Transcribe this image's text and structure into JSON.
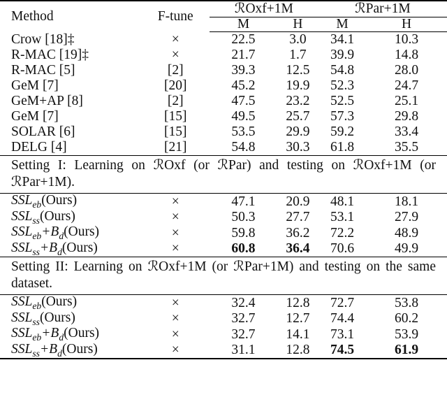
{
  "header": {
    "method": "Method",
    "ftune": "F-tune",
    "group1": "ℛOxf+1M",
    "group2": "ℛPar+1M",
    "m": "M",
    "h": "H"
  },
  "baseline_rows": [
    {
      "method": "Crow [18]‡",
      "ftune": "×",
      "oxf_m": "22.5",
      "oxf_h": "3.0",
      "par_m": "34.1",
      "par_h": "10.3"
    },
    {
      "method": "R-MAC [19]‡",
      "ftune": "×",
      "oxf_m": "21.7",
      "oxf_h": "1.7",
      "par_m": "39.9",
      "par_h": "14.8"
    },
    {
      "method": "R-MAC [5]",
      "ftune": "[2]",
      "oxf_m": "39.3",
      "oxf_h": "12.5",
      "par_m": "54.8",
      "par_h": "28.0"
    },
    {
      "method": "GeM [7]",
      "ftune": "[20]",
      "oxf_m": "45.2",
      "oxf_h": "19.9",
      "par_m": "52.3",
      "par_h": "24.7"
    },
    {
      "method": "GeM+AP [8]",
      "ftune": "[2]",
      "oxf_m": "47.5",
      "oxf_h": "23.2",
      "par_m": "52.5",
      "par_h": "25.1"
    },
    {
      "method": "GeM [7]",
      "ftune": "[15]",
      "oxf_m": "49.5",
      "oxf_h": "25.7",
      "par_m": "57.3",
      "par_h": "29.8"
    },
    {
      "method": "SOLAR [6]",
      "ftune": "[15]",
      "oxf_m": "53.5",
      "oxf_h": "29.9",
      "par_m": "59.2",
      "par_h": "33.4"
    },
    {
      "method": "DELG [4]",
      "ftune": "[21]",
      "oxf_m": "54.8",
      "oxf_h": "30.3",
      "par_m": "61.8",
      "par_h": "35.5"
    }
  ],
  "setting1": {
    "text": "Setting I: Learning on ℛOxf (or ℛPar) and testing on ℛOxf+1M (or ℛPar+1M).",
    "rows": [
      {
        "method_base": "SSL",
        "method_sub": "eb",
        "method_extra": "",
        "method_extra_sub": "",
        "method_suffix": "(Ours)",
        "ftune": "×",
        "oxf_m": "47.1",
        "oxf_h": "20.9",
        "par_m": "48.1",
        "par_h": "18.1"
      },
      {
        "method_base": "SSL",
        "method_sub": "ss",
        "method_extra": "",
        "method_extra_sub": "",
        "method_suffix": "(Ours)",
        "ftune": "×",
        "oxf_m": "50.3",
        "oxf_h": "27.7",
        "par_m": "53.1",
        "par_h": "27.9"
      },
      {
        "method_base": "SSL",
        "method_sub": "eb",
        "method_extra": "+B",
        "method_extra_sub": "d",
        "method_suffix": "(Ours)",
        "ftune": "×",
        "oxf_m": "59.8",
        "oxf_h": "36.2",
        "par_m": "72.2",
        "par_h": "48.9"
      },
      {
        "method_base": "SSL",
        "method_sub": "ss",
        "method_extra": "+B",
        "method_extra_sub": "d",
        "method_suffix": "(Ours)",
        "ftune": "×",
        "oxf_m": "60.8",
        "oxf_h": "36.4",
        "par_m": "70.6",
        "par_h": "49.9"
      }
    ]
  },
  "setting2": {
    "text": "Setting II: Learning on ℛOxf+1M (or ℛPar+1M) and testing on the same dataset.",
    "rows": [
      {
        "method_base": "SSL",
        "method_sub": "eb",
        "method_extra": "",
        "method_extra_sub": "",
        "method_suffix": "(Ours)",
        "ftune": "×",
        "oxf_m": "32.4",
        "oxf_h": "12.8",
        "par_m": "72.7",
        "par_h": "53.8"
      },
      {
        "method_base": "SSL",
        "method_sub": "ss",
        "method_extra": "",
        "method_extra_sub": "",
        "method_suffix": "(Ours)",
        "ftune": "×",
        "oxf_m": "32.7",
        "oxf_h": "12.7",
        "par_m": "74.4",
        "par_h": "60.2"
      },
      {
        "method_base": "SSL",
        "method_sub": "eb",
        "method_extra": "+B",
        "method_extra_sub": "d",
        "method_suffix": "(Ours)",
        "ftune": "×",
        "oxf_m": "32.7",
        "oxf_h": "14.1",
        "par_m": "73.1",
        "par_h": "53.9"
      },
      {
        "method_base": "SSL",
        "method_sub": "ss",
        "method_extra": "+B",
        "method_extra_sub": "d",
        "method_suffix": "(Ours)",
        "ftune": "×",
        "oxf_m": "31.1",
        "oxf_h": "12.8",
        "par_m": "74.5",
        "par_h": "61.9"
      }
    ]
  }
}
